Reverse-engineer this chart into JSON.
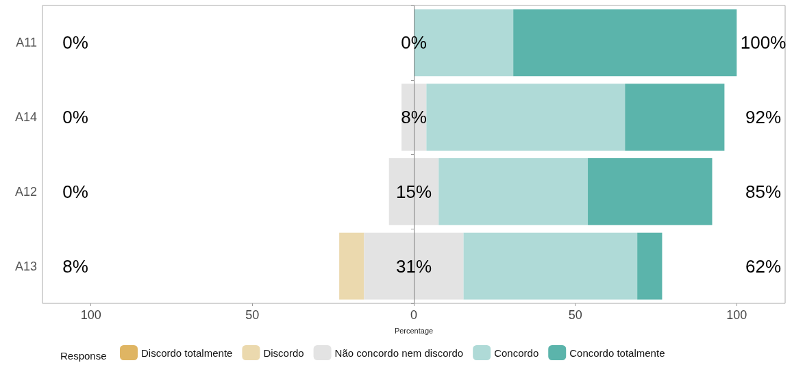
{
  "chart_data": {
    "type": "bar",
    "orientation": "horizontal",
    "xlabel": "Percentage",
    "legend_title": "Response",
    "legend": "bottom",
    "categories": [
      "A11",
      "A14",
      "A12",
      "A13"
    ],
    "series": [
      {
        "name": "Discordo totalmente",
        "color": "#dfb563",
        "base": [
          null,
          null,
          null,
          null
        ],
        "values": [
          null,
          null,
          null,
          null
        ]
      },
      {
        "name": "Discordo",
        "color": "#ebd9ae",
        "base": [
          null,
          null,
          null,
          -23.1
        ],
        "values": [
          null,
          null,
          null,
          7.7
        ]
      },
      {
        "name": "Não concordo nem discordo",
        "color": "#e3e3e3",
        "base": [
          null,
          -3.8,
          -7.7,
          -15.4
        ],
        "values": [
          null,
          7.7,
          15.4,
          30.8
        ]
      },
      {
        "name": "Concordo",
        "color": "#afdad7",
        "base": [
          0,
          3.9,
          7.7,
          15.4
        ],
        "values": [
          30.8,
          61.5,
          46.2,
          53.8
        ]
      },
      {
        "name": "Concordo totalmente",
        "color": "#5bb4ab",
        "base": [
          30.8,
          65.4,
          53.9,
          69.2
        ],
        "values": [
          69.2,
          30.8,
          38.5,
          7.7
        ]
      }
    ],
    "xlim": [
      -115,
      115
    ],
    "xticks": [
      {
        "value": -100,
        "label": "100"
      },
      {
        "value": -50,
        "label": "50"
      },
      0,
      50,
      100
    ],
    "grid": false,
    "ref_lines": [
      {
        "axis": "x",
        "value": 0,
        "color": "#7f7f7f"
      }
    ],
    "annotations": [
      "0%",
      "0%",
      "100%",
      "0%",
      "8%",
      "92%",
      "0%",
      "15%",
      "85%",
      "8%",
      "31%",
      "62%"
    ]
  }
}
